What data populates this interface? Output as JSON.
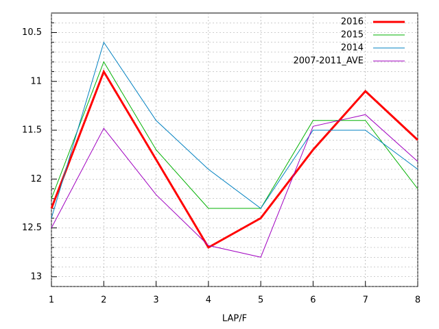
{
  "chart_data": {
    "type": "line",
    "x_label": "LAP/F",
    "x": [
      1,
      2,
      3,
      4,
      5,
      6,
      7,
      8
    ],
    "xlim": [
      1,
      8
    ],
    "xticks": [
      1,
      2,
      3,
      4,
      5,
      6,
      7,
      8
    ],
    "ylim": [
      10.3,
      13.1
    ],
    "y_reversed": true,
    "yticks": [
      10.5,
      11,
      11.5,
      12,
      12.5,
      13
    ],
    "y_minor_ticks": [
      10.4,
      10.6,
      10.7,
      10.8,
      10.9,
      11.1,
      11.2,
      11.3,
      11.4,
      11.6,
      11.7,
      11.8,
      11.9,
      12.1,
      12.2,
      12.3,
      12.4,
      12.6,
      12.7,
      12.8,
      12.9,
      13.1
    ],
    "grid": true,
    "legend": "top-right",
    "series": [
      {
        "name": "2016",
        "color": "#ff0000",
        "line_width": 3,
        "values": [
          12.3,
          10.9,
          11.8,
          12.7,
          12.4,
          11.7,
          11.1,
          11.6
        ]
      },
      {
        "name": "2015",
        "color": "#00b000",
        "line_width": 1,
        "values": [
          12.2,
          10.8,
          11.7,
          12.3,
          12.3,
          11.4,
          11.4,
          12.1
        ]
      },
      {
        "name": "2014",
        "color": "#0080c0",
        "line_width": 1,
        "values": [
          12.4,
          10.6,
          11.4,
          11.9,
          12.3,
          11.5,
          11.5,
          11.9
        ]
      },
      {
        "name": "2007-2011_AVE",
        "color": "#a000c0",
        "line_width": 1,
        "values": [
          12.5,
          11.48,
          12.16,
          12.68,
          12.8,
          11.46,
          11.34,
          11.82
        ]
      }
    ]
  }
}
